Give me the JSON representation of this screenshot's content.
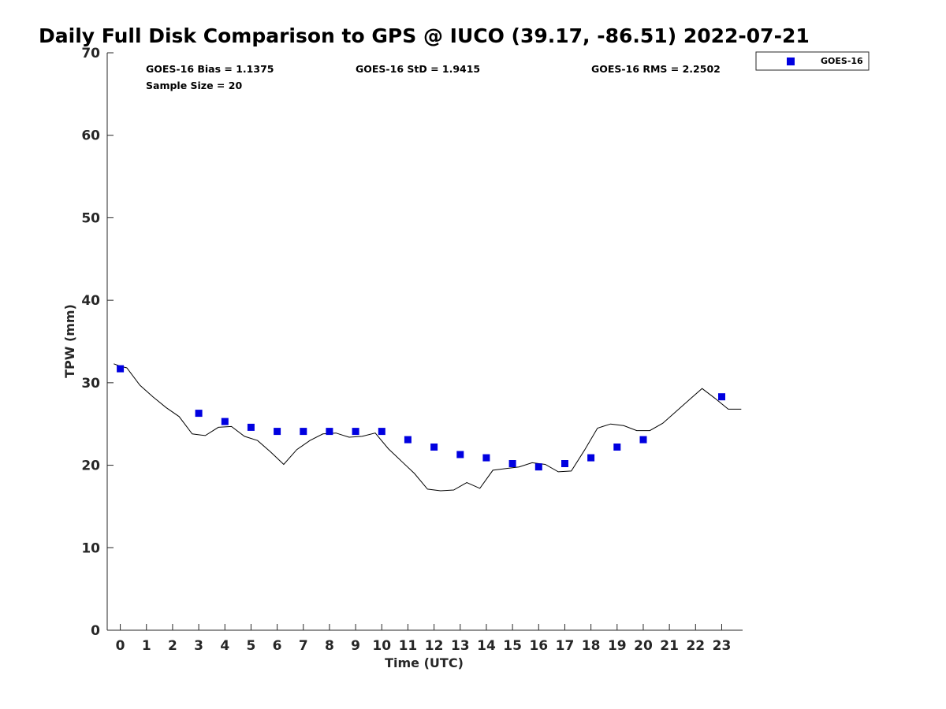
{
  "chart_data": {
    "type": "scatter",
    "title": "Daily Full Disk Comparison to GPS @ IUCO (39.17, -86.51) 2022-07-21",
    "xlabel": "Time (UTC)",
    "ylabel": "TPW (mm)",
    "xlim": [
      -0.5,
      23.8
    ],
    "ylim": [
      0,
      70
    ],
    "xticks": [
      0,
      1,
      2,
      3,
      4,
      5,
      6,
      7,
      8,
      9,
      10,
      11,
      12,
      13,
      14,
      15,
      16,
      17,
      18,
      19,
      20,
      21,
      22,
      23
    ],
    "yticks": [
      0,
      10,
      20,
      30,
      40,
      50,
      60,
      70
    ],
    "grid": false,
    "stats": {
      "bias": "GOES-16 Bias = 1.1375",
      "std": "GOES-16 StD = 1.9415",
      "rms": "GOES-16 RMS = 2.2502",
      "sample": "Sample Size = 20"
    },
    "legend": {
      "placement": "outside-top-right",
      "entries": [
        "GOES-16"
      ]
    },
    "series": [
      {
        "name": "GOES-16",
        "kind": "markers",
        "color": "#0000e0",
        "marker": "square",
        "x": [
          0,
          3,
          4,
          5,
          6,
          7,
          8,
          9,
          10,
          11,
          12,
          13,
          14,
          15,
          16,
          17,
          18,
          19,
          20,
          23
        ],
        "y": [
          31.7,
          26.3,
          25.3,
          24.6,
          24.1,
          24.1,
          24.1,
          24.1,
          24.1,
          23.1,
          22.2,
          21.3,
          20.9,
          20.2,
          19.8,
          20.2,
          20.9,
          22.2,
          23.1,
          28.3
        ]
      },
      {
        "kind": "line",
        "color": "#000000",
        "x": [
          -0.25,
          0,
          0.25,
          0.75,
          1.25,
          1.75,
          2.25,
          2.75,
          3.25,
          3.75,
          4.25,
          4.75,
          5.25,
          5.75,
          6.25,
          6.75,
          7.25,
          7.75,
          8.25,
          8.75,
          9.25,
          9.75,
          10.25,
          10.75,
          11.25,
          11.75,
          12.25,
          12.75,
          13.25,
          13.75,
          14.25,
          14.75,
          15.25,
          15.75,
          16.25,
          16.75,
          17.25,
          17.75,
          18.25,
          18.75,
          19.25,
          19.75,
          20.25,
          20.75,
          21.25,
          21.75,
          22.25,
          22.75,
          23.25,
          23.75
        ],
        "y": [
          32.3,
          32.0,
          31.8,
          29.7,
          28.3,
          27.0,
          25.9,
          23.8,
          23.6,
          24.6,
          24.7,
          23.5,
          23.0,
          21.6,
          20.1,
          21.9,
          23.0,
          23.8,
          23.9,
          23.4,
          23.5,
          23.9,
          22.0,
          20.5,
          19.0,
          17.1,
          16.9,
          17.0,
          17.9,
          17.2,
          19.4,
          19.6,
          19.8,
          20.3,
          20.1,
          19.2,
          19.3,
          21.8,
          24.5,
          25.0,
          24.8,
          24.2,
          24.2,
          25.1,
          26.5,
          27.9,
          29.3,
          28.1,
          26.8,
          26.8
        ]
      }
    ]
  }
}
